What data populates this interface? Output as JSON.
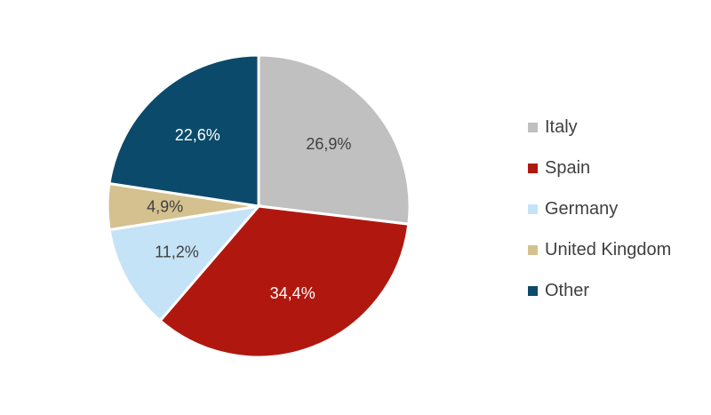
{
  "chart_data": {
    "type": "pie",
    "slices": [
      {
        "name": "Italy",
        "value": 26.9,
        "label": "26,9%",
        "color": "#C0C0C0",
        "label_color": "#404040"
      },
      {
        "name": "Spain",
        "value": 34.4,
        "label": "34,4%",
        "color": "#B0180F",
        "label_color": "#FFFFFF"
      },
      {
        "name": "Germany",
        "value": 11.2,
        "label": "11,2%",
        "color": "#C5E3F6",
        "label_color": "#404040"
      },
      {
        "name": "United Kingdom",
        "value": 4.9,
        "label": "4,9%",
        "color": "#D4C18F",
        "label_color": "#404040"
      },
      {
        "name": "Other",
        "value": 22.6,
        "label": "22,6%",
        "color": "#0B4A6A",
        "label_color": "#FFFFFF"
      }
    ],
    "start_angle": "12 o'clock",
    "direction": "clockwise",
    "legend_position": "right"
  }
}
